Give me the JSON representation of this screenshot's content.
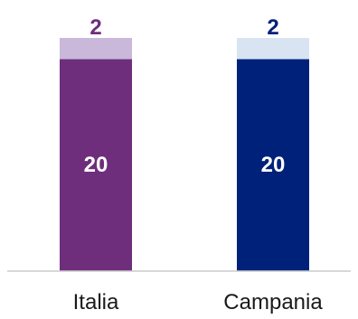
{
  "chart_data": {
    "type": "bar",
    "stacked": true,
    "categories": [
      "Italia",
      "Campania"
    ],
    "series": [
      {
        "values": [
          20,
          20
        ],
        "colors": [
          "#6e2e7c",
          "#00217a"
        ],
        "label_color": "#ffffff"
      },
      {
        "values": [
          2,
          2
        ],
        "colors": [
          "#c9b8d9",
          "#d9e4f2"
        ],
        "label_colors": [
          "#6e2e7c",
          "#00217a"
        ]
      }
    ],
    "ylim": [
      0,
      22
    ],
    "grid": false,
    "legend": "none"
  }
}
